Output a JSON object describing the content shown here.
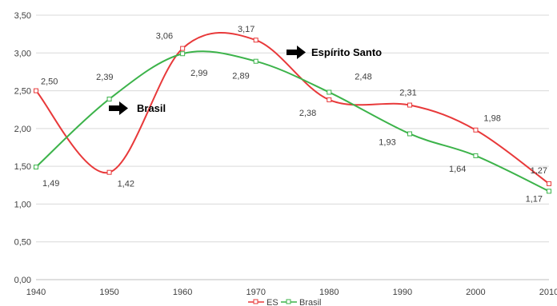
{
  "chart_data": {
    "type": "line",
    "x": [
      1940,
      1950,
      1960,
      1970,
      1980,
      1990,
      2000,
      2010
    ],
    "x_tick_labels": [
      "1940",
      "1950",
      "1960",
      "1970",
      "1980",
      "1990",
      "2000",
      "2010"
    ],
    "y_tick_labels": [
      "0,00",
      "0,50",
      "1,00",
      "1,50",
      "2,00",
      "2,50",
      "3,00",
      "3,50"
    ],
    "ylim": [
      0,
      3.5
    ],
    "grid": "horizontal",
    "series": [
      {
        "name": "ES",
        "color": "#e8393a",
        "smooth": true,
        "x": [
          1940,
          1950,
          1960,
          1970,
          1980,
          1991,
          2000,
          2010
        ],
        "values": [
          2.5,
          1.42,
          3.06,
          3.17,
          2.38,
          2.31,
          1.98,
          1.27
        ],
        "labels": [
          "2,50",
          "1,42",
          "3,06",
          "3,17",
          "2,38",
          "2,31",
          "1,98",
          "1,27"
        ]
      },
      {
        "name": "Brasil",
        "color": "#3cb34a",
        "smooth": true,
        "x": [
          1940,
          1950,
          1960,
          1970,
          1980,
          1991,
          2000,
          2010
        ],
        "values": [
          1.49,
          2.39,
          2.99,
          2.89,
          2.48,
          1.93,
          1.64,
          1.17
        ],
        "labels": [
          "1,49",
          "2,39",
          "2,99",
          "2,89",
          "2,48",
          "1,93",
          "1,64",
          "1,17"
        ]
      }
    ],
    "annotations": [
      {
        "text": "Espírito Santo",
        "arrow": "right"
      },
      {
        "text": "Brasil",
        "arrow": "right"
      }
    ],
    "legend": {
      "position": "bottom",
      "entries": [
        "ES",
        "Brasil"
      ]
    }
  }
}
